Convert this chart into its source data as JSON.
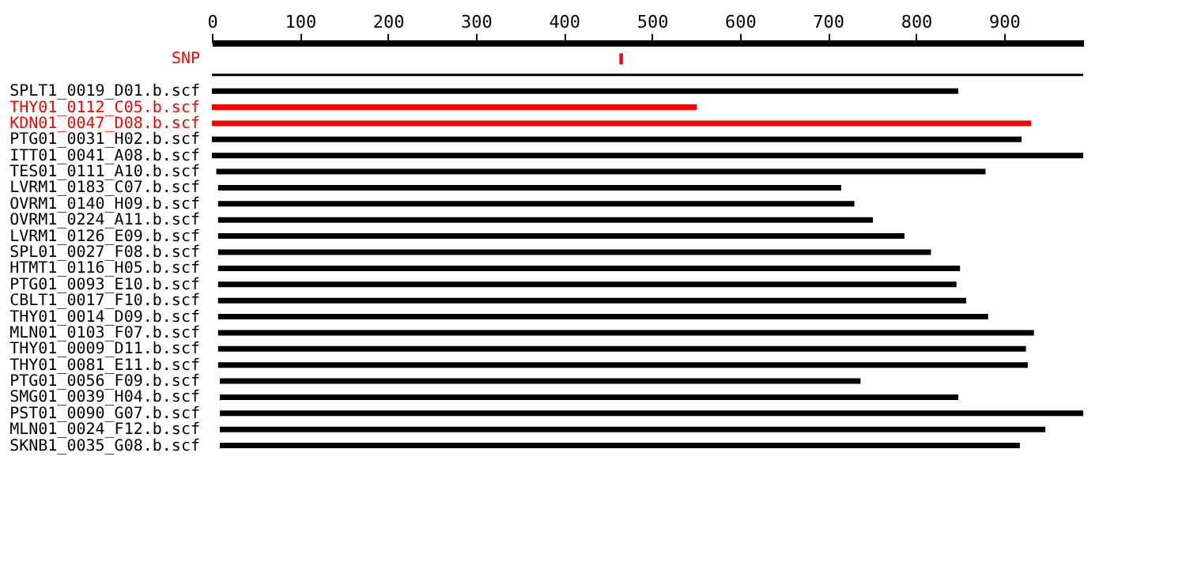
{
  "chart_data": {
    "type": "bar",
    "orientation": "horizontal",
    "categories": [
      "SNP",
      null,
      "SPLT1_0019_D01.b.scf",
      "THY01_0112_C05.b.scf",
      "KDN01_0047_D08.b.scf",
      "PTG01_0031_H02.b.scf",
      "ITT01_0041_A08.b.scf",
      "TES01_0111_A10.b.scf",
      "LVRM1_0183_C07.b.scf",
      "OVRM1_0140_H09.b.scf",
      "OVRM1_0224_A11.b.scf",
      "LVRM1_0126_E09.b.scf",
      "SPL01_0027_F08.b.scf",
      "HTMT1_0116_H05.b.scf",
      "PTG01_0093_E10.b.scf",
      "CBLT1_0017_F10.b.scf",
      "THY01_0014_D09.b.scf",
      "MLN01_0103_F07.b.scf",
      "THY01_0009_D11.b.scf",
      "THY01_0081_E11.b.scf",
      "PTG01_0056_F09.b.scf",
      "SMG01_0039_H04.b.scf",
      "PST01_0090_G07.b.scf",
      "MLN01_0024_F12.b.scf",
      "SKNB1_0035_G08.b.scf"
    ],
    "base": [
      463,
      0,
      0,
      0,
      0,
      0,
      0,
      5,
      7,
      7,
      7,
      7,
      7,
      7,
      7,
      7,
      7,
      7,
      7,
      7,
      9,
      9,
      9,
      9,
      9
    ],
    "values": [
      4,
      990,
      848,
      551,
      931,
      920,
      990,
      874,
      708,
      723,
      744,
      780,
      810,
      843,
      839,
      850,
      875,
      927,
      918,
      920,
      728,
      839,
      981,
      938,
      909
    ],
    "colors": [
      "#ff0000",
      "#000000",
      "#000000",
      "#ff0000",
      "#ff0000",
      "#000000",
      "#000000",
      "#000000",
      "#000000",
      "#000000",
      "#000000",
      "#000000",
      "#000000",
      "#000000",
      "#000000",
      "#000000",
      "#000000",
      "#000000",
      "#000000",
      "#000000",
      "#000000",
      "#000000",
      "#000000",
      "#000000",
      "#000000"
    ],
    "xlim": [
      0,
      990
    ],
    "xticks": [
      0,
      100,
      200,
      300,
      400,
      500,
      600,
      700,
      800,
      900
    ],
    "grid": false
  }
}
